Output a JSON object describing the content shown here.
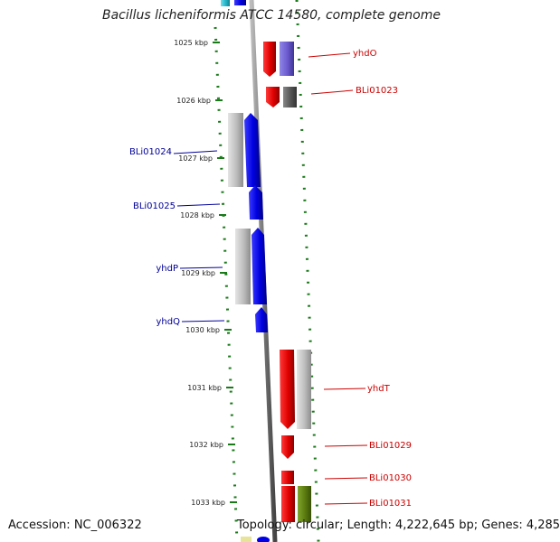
{
  "title": "Bacillus licheniformis ATCC 14580, complete genome",
  "accession": "Accession: NC_006322",
  "summary": "Topology: circular; Length: 4,222,645 bp; Genes: 4,285",
  "colors": {
    "forward": "#e60000",
    "reverse": "#0000e6",
    "grey": "#b8b8b8",
    "darkgrey": "#555555",
    "purple": "#6a5acd",
    "olive": "#5a7a10",
    "cyan": "#22b5c9",
    "backbone": "#888888",
    "ticks": "#1a7a1a",
    "label_forward": "#cc0000",
    "label_reverse": "#000099"
  },
  "ticks": [
    "1025 kbp",
    "1026 kbp",
    "1027 kbp",
    "1028 kbp",
    "1029 kbp",
    "1030 kbp",
    "1031 kbp",
    "1032 kbp",
    "1033 kbp"
  ],
  "gene_labels": [
    {
      "name": "yhdO",
      "strand": "forward"
    },
    {
      "name": "BLi01023",
      "strand": "forward"
    },
    {
      "name": "BLi01024",
      "strand": "reverse"
    },
    {
      "name": "BLi01025",
      "strand": "reverse"
    },
    {
      "name": "yhdP",
      "strand": "reverse"
    },
    {
      "name": "yhdQ",
      "strand": "reverse"
    },
    {
      "name": "yhdT",
      "strand": "forward"
    },
    {
      "name": "BLi01029",
      "strand": "forward"
    },
    {
      "name": "BLi01030",
      "strand": "forward"
    },
    {
      "name": "BLi01031",
      "strand": "forward"
    }
  ]
}
